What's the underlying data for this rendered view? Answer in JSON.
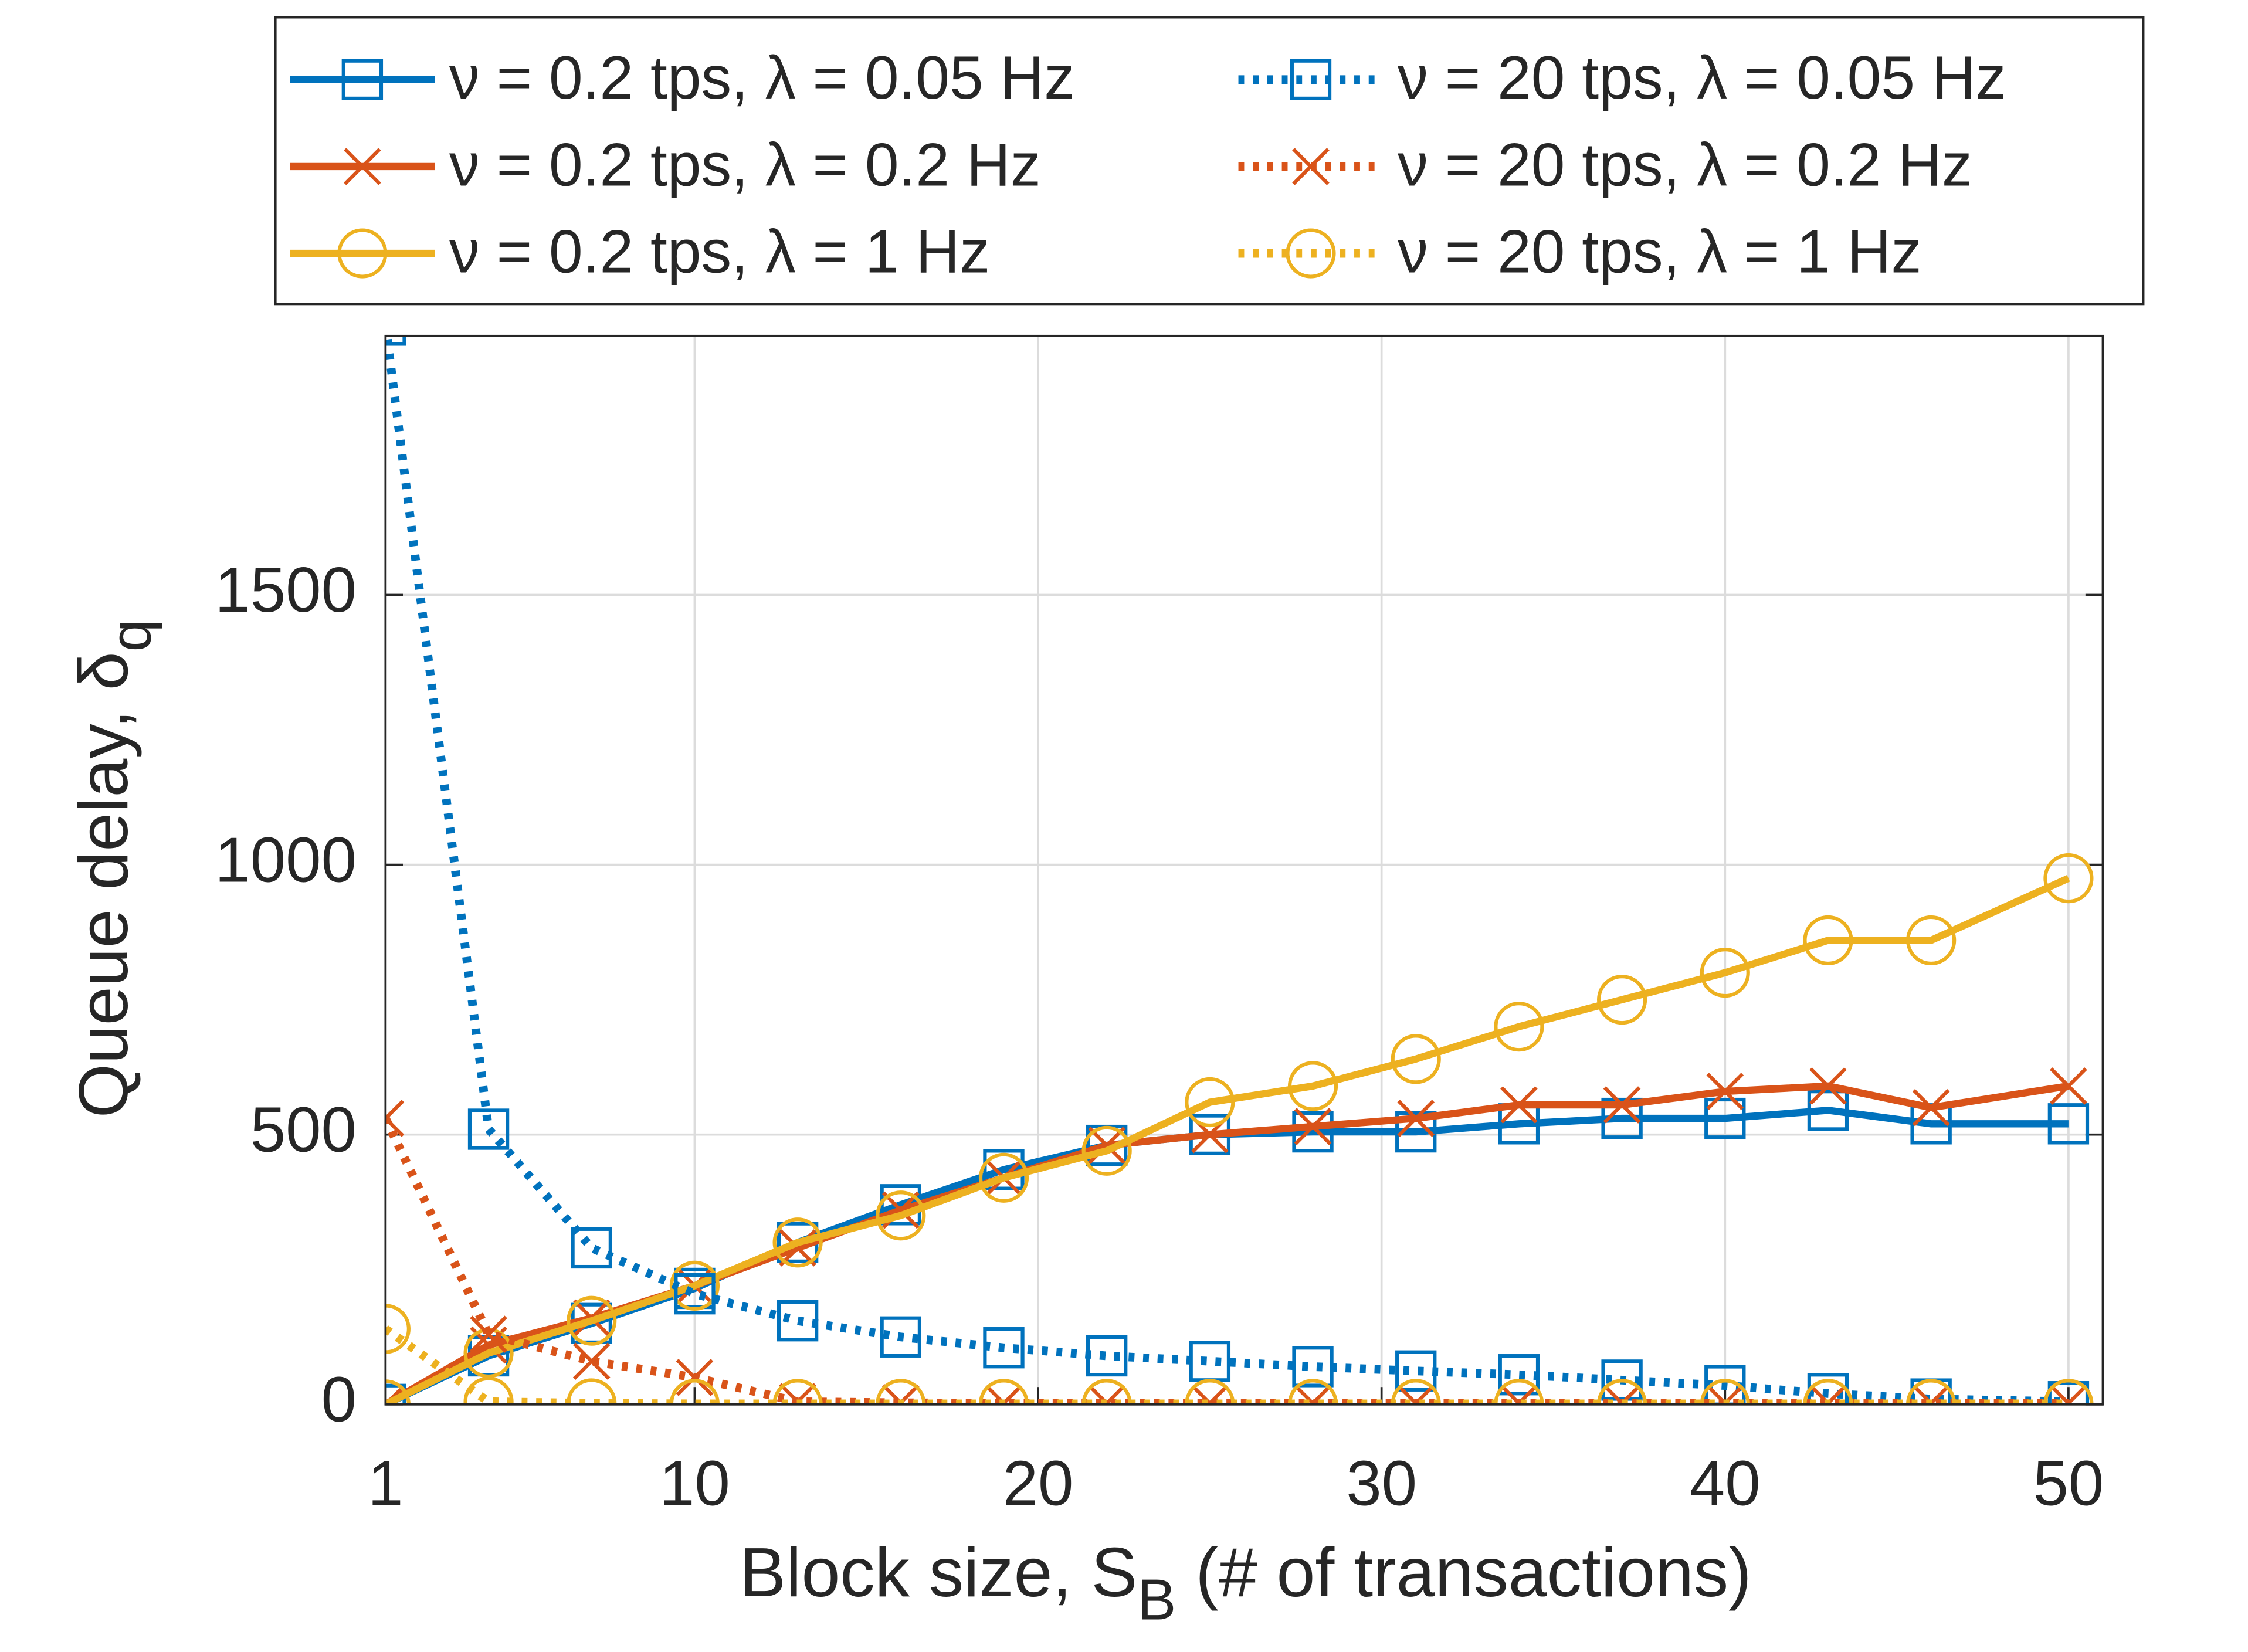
{
  "chart_data": {
    "type": "line",
    "xlabel": [
      "Block size, S",
      "B",
      " (# of transactions)"
    ],
    "ylabel": [
      "Queue delay, δ",
      "q"
    ],
    "x": [
      1,
      4,
      7,
      10,
      13,
      16,
      19,
      22,
      25,
      28,
      31,
      34,
      37,
      40,
      43,
      46,
      50
    ],
    "xlim": [
      1,
      51
    ],
    "ylim": [
      0,
      1980
    ],
    "xticks": [
      1,
      10,
      20,
      30,
      40,
      50
    ],
    "yticks": [
      0,
      500,
      1000,
      1500
    ],
    "grid": true,
    "legend": "top-outside",
    "series": [
      {
        "name": "ν = 0.2 tps, λ = 0.05 Hz",
        "color": "#0072BD",
        "style": "solid",
        "marker": "square",
        "values": [
          0,
          90,
          150,
          215,
          300,
          370,
          435,
          480,
          500,
          505,
          505,
          520,
          530,
          530,
          545,
          520,
          520
        ]
      },
      {
        "name": "ν = 0.2 tps, λ = 0.2 Hz",
        "color": "#D95319",
        "style": "solid",
        "marker": "x",
        "values": [
          0,
          110,
          160,
          220,
          290,
          360,
          420,
          480,
          500,
          515,
          530,
          555,
          555,
          580,
          590,
          550,
          590
        ]
      },
      {
        "name": "ν = 0.2 tps, λ = 1 Hz",
        "color": "#EDB120",
        "style": "solid",
        "marker": "circle",
        "values": [
          0,
          95,
          155,
          220,
          300,
          350,
          420,
          470,
          560,
          590,
          640,
          700,
          750,
          800,
          860,
          860,
          975
        ]
      },
      {
        "name": "ν = 20 tps, λ = 0.05 Hz",
        "color": "#0072BD",
        "style": "dotted",
        "marker": "square",
        "values": [
          2000,
          510,
          290,
          205,
          155,
          125,
          105,
          90,
          80,
          70,
          62,
          55,
          45,
          35,
          20,
          10,
          5
        ]
      },
      {
        "name": "ν = 20 tps, λ = 0.2 Hz",
        "color": "#D95319",
        "style": "dotted",
        "marker": "x",
        "values": [
          530,
          130,
          80,
          50,
          5,
          3,
          2,
          2,
          2,
          2,
          2,
          2,
          2,
          2,
          2,
          2,
          2
        ]
      },
      {
        "name": "ν = 20 tps, λ = 1 Hz",
        "color": "#EDB120",
        "style": "dotted",
        "marker": "circle",
        "values": [
          140,
          5,
          2,
          1,
          1,
          1,
          1,
          1,
          1,
          1,
          1,
          1,
          1,
          1,
          1,
          1,
          1
        ]
      }
    ]
  }
}
